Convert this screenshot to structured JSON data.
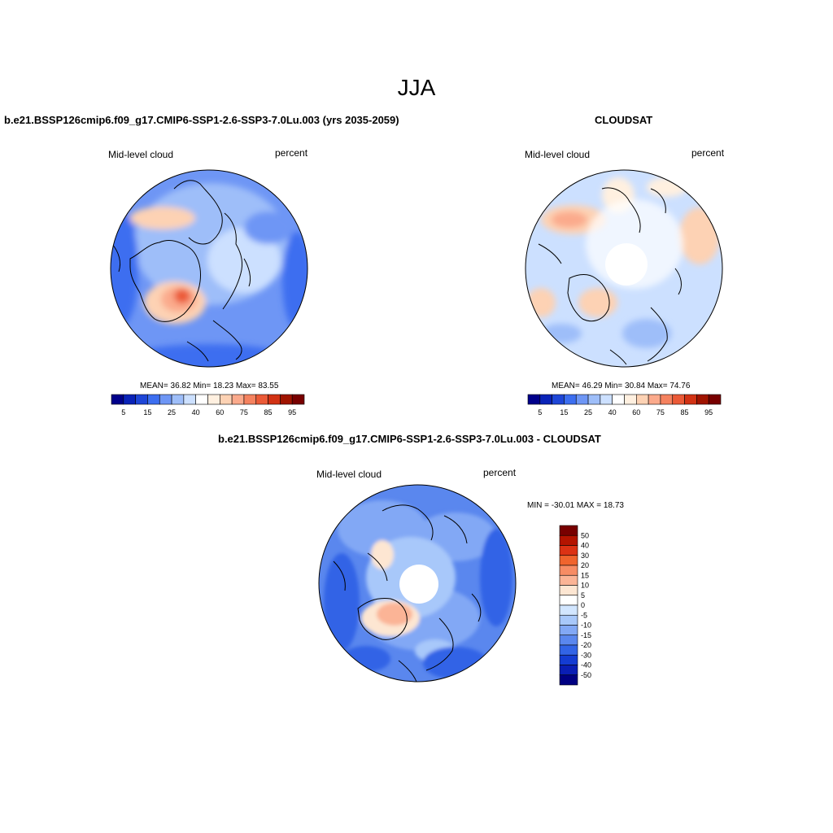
{
  "figure": {
    "season": "JJA",
    "variable": "Mid-level cloud",
    "units": "percent"
  },
  "panels": [
    {
      "title": "b.e21.BSSP126cmip6.f09_g17.CMIP6-SSP1-2.6-SSP3-7.0Lu.003 (yrs 2035-2059)",
      "stats": "MEAN=  36.82  Min=  18.23  Max=  83.55",
      "colorbar_labels": [
        "5",
        "15",
        "25",
        "40",
        "60",
        "75",
        "85",
        "95"
      ]
    },
    {
      "title": "CLOUDSAT",
      "stats": "MEAN=  46.29  Min=  30.84  Max=  74.76",
      "colorbar_labels": [
        "5",
        "15",
        "25",
        "40",
        "60",
        "75",
        "85",
        "95"
      ]
    },
    {
      "title": "b.e21.BSSP126cmip6.f09_g17.CMIP6-SSP1-2.6-SSP3-7.0Lu.003 - CLOUDSAT",
      "stats": "MIN = -30.01 MAX =  18.73",
      "colorbar_labels": [
        "50",
        "40",
        "30",
        "20",
        "15",
        "10",
        "5",
        "0",
        "-5",
        "-10",
        "-15",
        "-20",
        "-30",
        "-40",
        "-50"
      ]
    }
  ],
  "colors": {
    "abs_scale": [
      "#00008b",
      "#0a23b8",
      "#1e46d7",
      "#3c6ef0",
      "#6e96f5",
      "#9ebef9",
      "#cce0ff",
      "#ffffff",
      "#fff0e0",
      "#fdd2b4",
      "#fbaa8c",
      "#f5825f",
      "#eb5a37",
      "#d23214",
      "#a01400",
      "#780000"
    ],
    "diff_scale": [
      "#780000",
      "#b41400",
      "#dc3214",
      "#f0642d",
      "#f78c64",
      "#fbb496",
      "#fde6d2",
      "#ffffff",
      "#d2e6ff",
      "#a8c8fa",
      "#82a8f5",
      "#5a87ee",
      "#3264e6",
      "#143cd2",
      "#0a1eb4",
      "#000082"
    ],
    "coast": "#000000",
    "background": "#ffffff"
  }
}
